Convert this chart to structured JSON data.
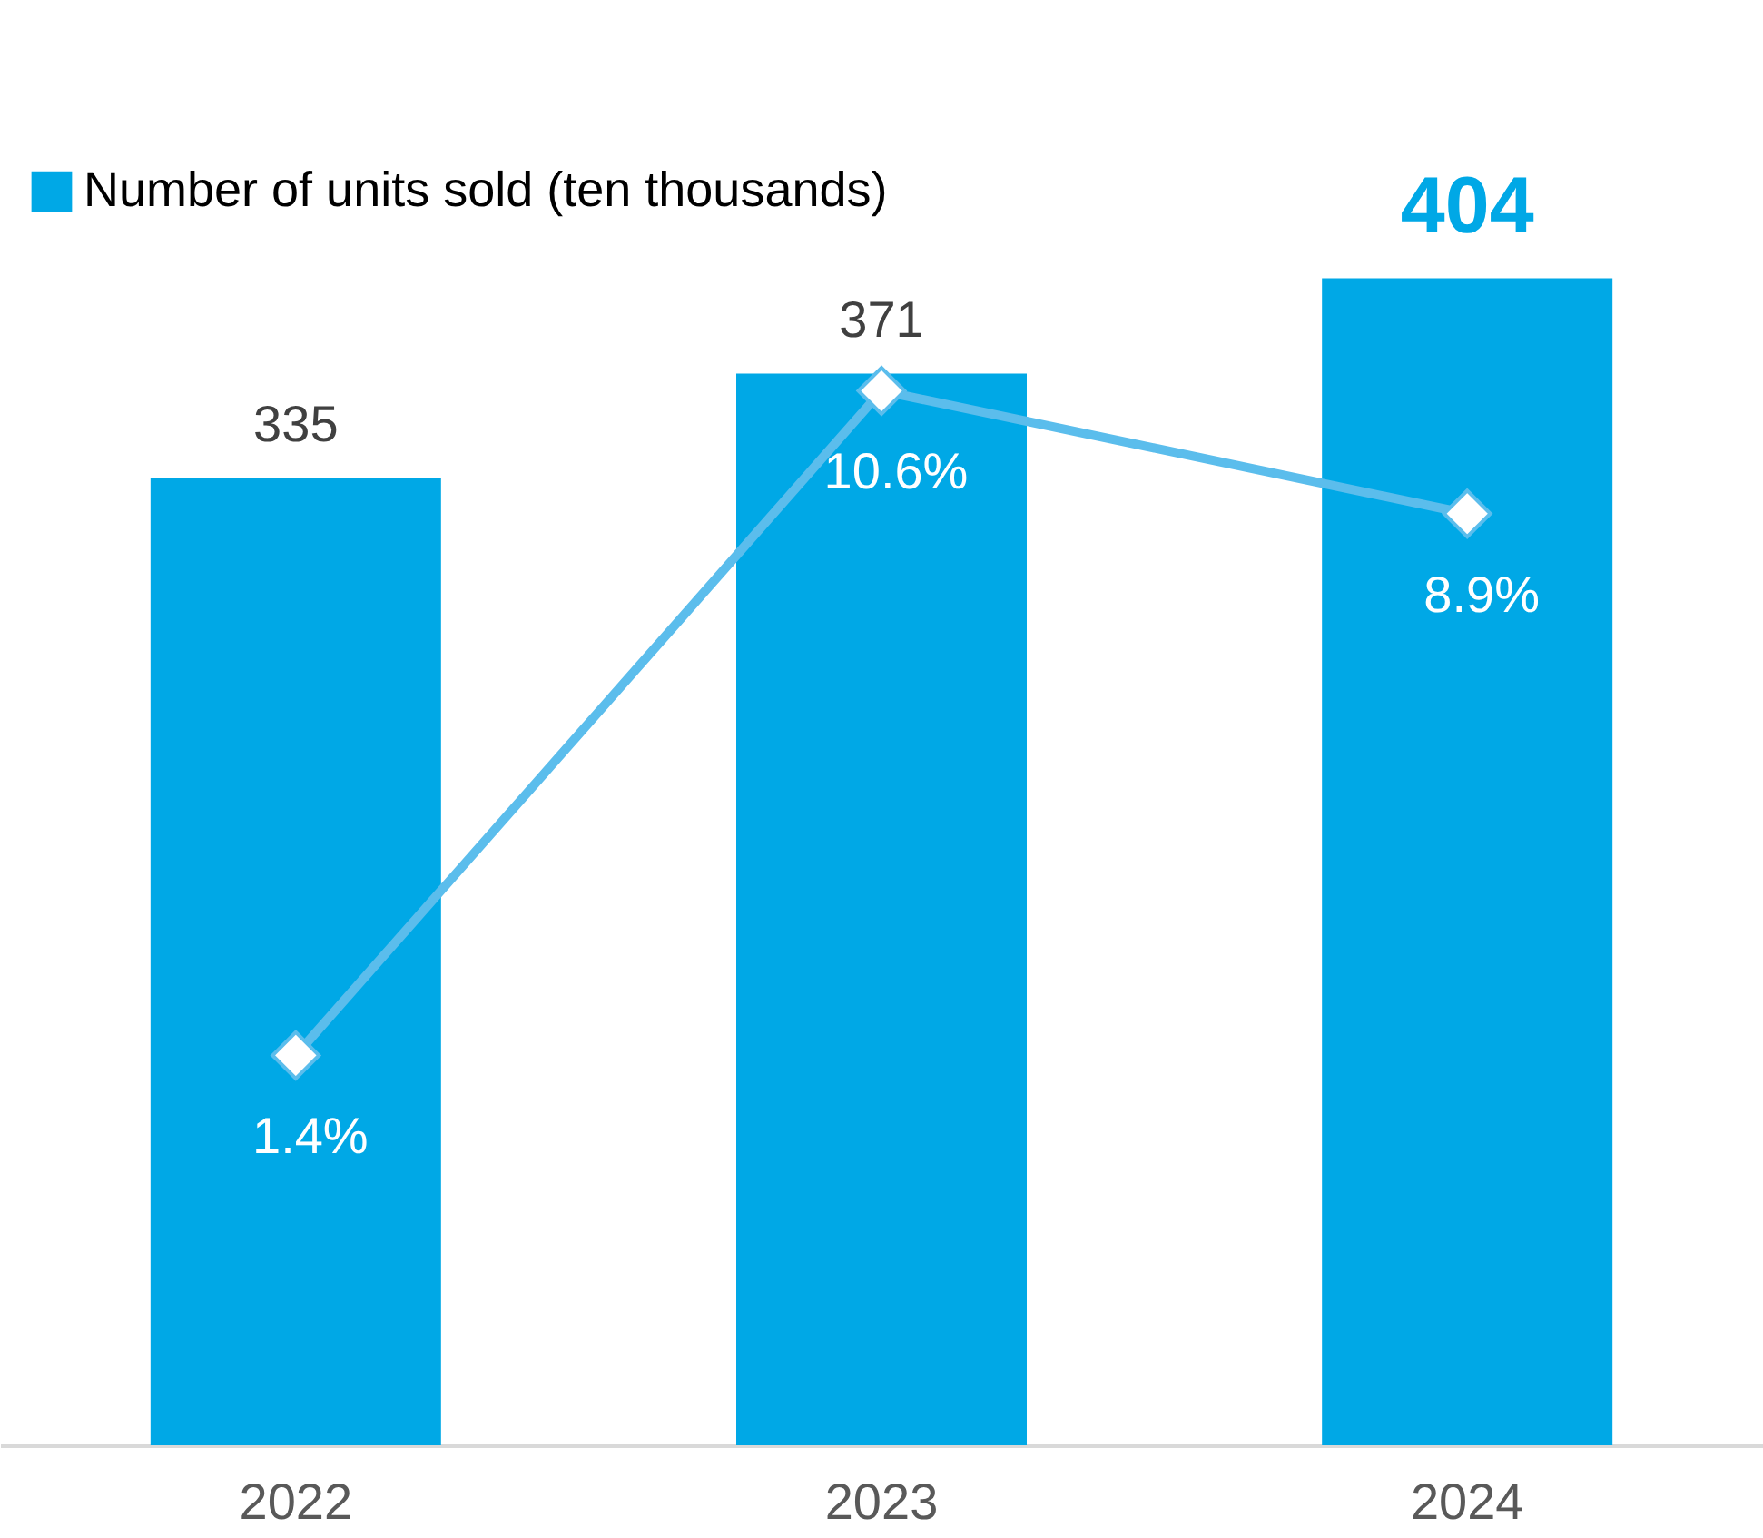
{
  "chart_data": {
    "type": "bar",
    "categories": [
      "2022",
      "2023",
      "2024"
    ],
    "series": [
      {
        "name": "Number of units sold (ten thousands)",
        "color": "#00a8e6",
        "values": [
          335,
          371,
          404
        ],
        "value_labels": [
          "335",
          "371",
          "404"
        ]
      },
      {
        "type": "line",
        "axis": "y2",
        "color": "#5bbdec",
        "values": [
          1.4,
          10.6,
          8.9
        ],
        "value_labels": [
          "1.4%",
          "10.6%",
          "8.9%"
        ],
        "marker": "diamond",
        "line_style": "solid"
      }
    ],
    "tick_labels": "x",
    "grid": false,
    "legend": "top left"
  }
}
